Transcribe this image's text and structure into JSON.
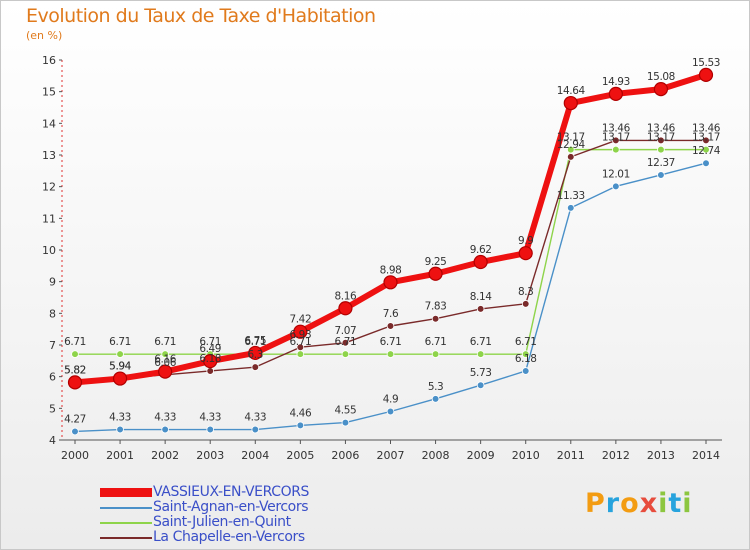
{
  "header": {
    "title": "Evolution du Taux de Taxe d'Habitation",
    "unit_label": "(en %)"
  },
  "logo": {
    "letters": [
      "P",
      "r",
      "o",
      "x",
      "i",
      "t",
      "i"
    ],
    "colors": [
      "#f39c12",
      "#27a3dd",
      "#f39c12",
      "#e74c3c",
      "#8cc63f",
      "#27a3dd",
      "#8cc63f"
    ]
  },
  "chart_data": {
    "type": "line",
    "title": "Evolution du Taux de Taxe d'Habitation",
    "ylabel": "(en %)",
    "xlabel": "",
    "x": [
      "2000",
      "2001",
      "2002",
      "2003",
      "2004",
      "2005",
      "2006",
      "2007",
      "2008",
      "2009",
      "2010",
      "2011",
      "2012",
      "2013",
      "2014"
    ],
    "ylim": [
      4,
      16
    ],
    "yticks": [
      4,
      5,
      6,
      7,
      8,
      9,
      10,
      11,
      12,
      13,
      14,
      15,
      16
    ],
    "grid": false,
    "legend_position": "bottom-left",
    "series": [
      {
        "name": "VASSIEUX-EN-VERCORS",
        "color": "#ee1111",
        "emphasis": true,
        "values": [
          5.82,
          5.94,
          6.16,
          6.49,
          6.75,
          7.42,
          8.16,
          8.98,
          9.25,
          9.62,
          9.9,
          14.64,
          14.93,
          15.08,
          15.53
        ],
        "labels": [
          "5.82",
          "5.94",
          "6.16",
          "6.49",
          "6.75",
          "7.42",
          "8.16",
          "8.98",
          "9.25",
          "9.62",
          "9.9",
          "14.64",
          "14.93",
          "15.08",
          "15.53"
        ]
      },
      {
        "name": "Saint-Agnan-en-Vercors",
        "color": "#4a90c8",
        "values": [
          4.27,
          4.33,
          4.33,
          4.33,
          4.33,
          4.46,
          4.55,
          4.9,
          5.3,
          5.73,
          6.18,
          11.33,
          12.01,
          12.37,
          12.74
        ],
        "labels": [
          "4.27",
          "4.33",
          "4.33",
          "4.33",
          "4.33",
          "4.46",
          "4.55",
          "4.9",
          "5.3",
          "5.73",
          "6.18",
          "11.33",
          "12.01",
          "12.37",
          "12.74"
        ]
      },
      {
        "name": "Saint-Julien-en-Quint",
        "color": "#8ed44a",
        "values": [
          6.71,
          6.71,
          6.71,
          6.71,
          6.71,
          6.71,
          6.71,
          6.71,
          6.71,
          6.71,
          6.71,
          13.17,
          13.17,
          13.17,
          13.17
        ],
        "labels": [
          "6.71",
          "6.71",
          "6.71",
          "6.71",
          "6.71",
          "6.71",
          "6.71",
          "6.71",
          "6.71",
          "6.71",
          "6.71",
          "13.17",
          "13.17",
          "13.17",
          "13.17"
        ]
      },
      {
        "name": "La Chapelle-en-Vercors",
        "color": "#7a2a2a",
        "values": [
          5.82,
          5.94,
          6.06,
          6.18,
          6.3,
          6.93,
          7.07,
          7.6,
          7.83,
          8.14,
          8.3,
          12.94,
          13.46,
          13.46,
          13.46
        ],
        "labels": [
          "5.82",
          "5.94",
          "6.06",
          "6.18",
          "6.3",
          "6.93",
          "7.07",
          "7.6",
          "7.83",
          "8.14",
          "8.3",
          "12.94",
          "13.46",
          "13.46",
          "13.46"
        ]
      }
    ]
  }
}
